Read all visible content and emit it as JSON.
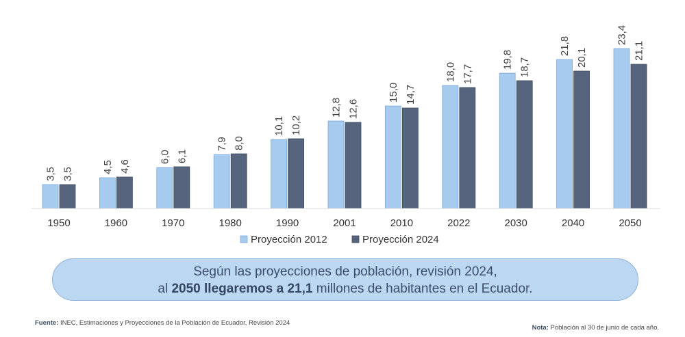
{
  "chart_data": {
    "type": "bar",
    "categories": [
      "1950",
      "1960",
      "1970",
      "1980",
      "1990",
      "2001",
      "2010",
      "2022",
      "2030",
      "2040",
      "2050"
    ],
    "series": [
      {
        "name": "Proyección 2012",
        "values": [
          "3,5",
          "4,5",
          "6,0",
          "7,9",
          "10,1",
          "12,8",
          "15,0",
          "18,0",
          "19,8",
          "21,8",
          "23,4"
        ],
        "color": "#a6cbef"
      },
      {
        "name": "Proyección 2024",
        "values": [
          "3,5",
          "4,6",
          "6,1",
          "8,0",
          "10,2",
          "12,6",
          "14,7",
          "17,7",
          "18,7",
          "20,1",
          "21,1"
        ],
        "color": "#56657d"
      }
    ],
    "ylim": [
      0,
      25
    ],
    "grid": false,
    "legend_position": "bottom"
  },
  "callout": {
    "line1": "Según las proyecciones de población, revisión 2024,",
    "line2_pre": "al",
    "line2_bold": "2050 llegaremos a 21,1",
    "line2_post": "millones de habitantes en el Ecuador."
  },
  "footer": {
    "source_label": "Fuente:",
    "source_text": "INEC, Estimaciones y Proyecciones de la Población de Ecuador, Revisión 2024",
    "note_label": "Nota:",
    "note_text": "Población al 30 de junio de cada año."
  }
}
